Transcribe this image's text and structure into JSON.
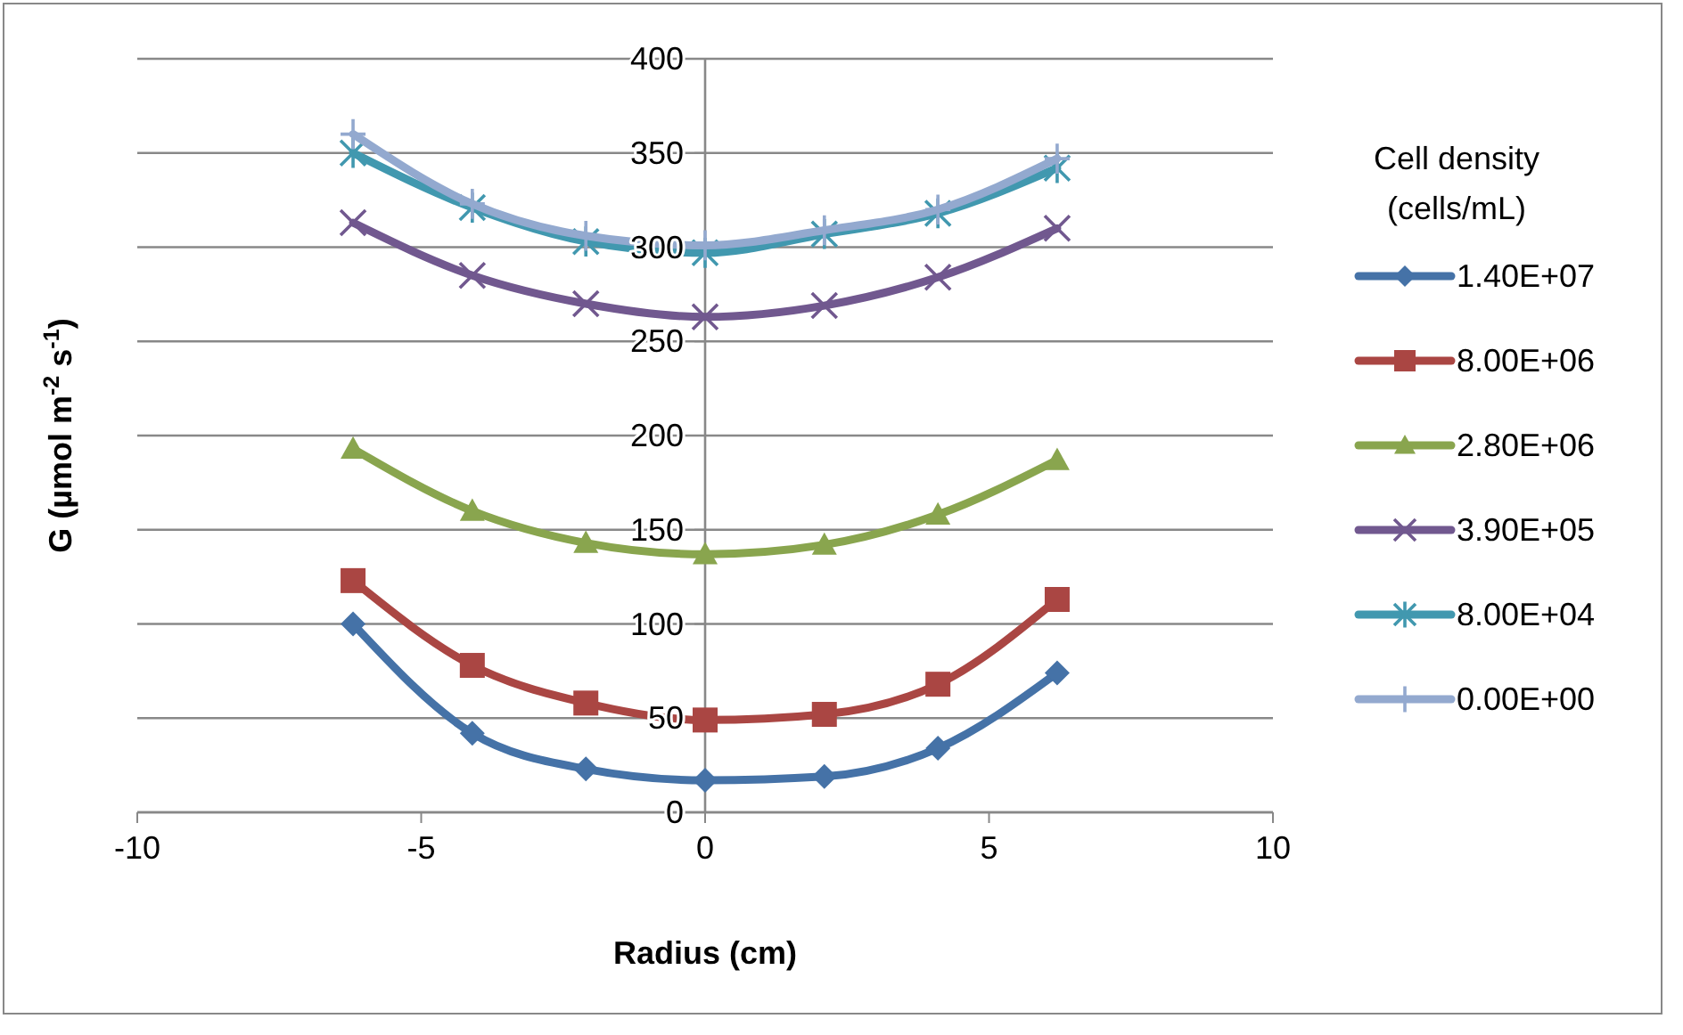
{
  "chart_data": {
    "type": "line",
    "xlabel": "Radius (cm)",
    "ylabel": "G (µmol m$^{-2}$ s$^{-1}$)",
    "legend_title": "Cell density\n(cells/mL)",
    "legend": "right",
    "grid": "y",
    "x": [
      -6.2,
      -4.1,
      -2.1,
      0,
      2.1,
      4.1,
      6.2
    ],
    "xlim": [
      -10,
      10
    ],
    "xticks": [
      -10,
      -5,
      0,
      5,
      10
    ],
    "ylim": [
      0,
      400
    ],
    "yticks": [
      0,
      50,
      100,
      150,
      200,
      250,
      300,
      350,
      400
    ],
    "series": [
      {
        "name": "1.40E+07",
        "color": "#4572a7",
        "marker": "diamond",
        "values": [
          100,
          42,
          23,
          17,
          19,
          34,
          74
        ]
      },
      {
        "name": "8.00E+06",
        "color": "#aa4643",
        "marker": "square",
        "values": [
          123,
          78,
          58,
          49,
          52,
          68,
          113
        ]
      },
      {
        "name": "2.80E+06",
        "color": "#89a54e",
        "marker": "triangle",
        "values": [
          193,
          160,
          143,
          137,
          142,
          158,
          187
        ]
      },
      {
        "name": "3.90E+05",
        "color": "#71588f",
        "marker": "cross",
        "values": [
          313,
          285,
          270,
          263,
          269,
          284,
          310
        ]
      },
      {
        "name": "8.00E+04",
        "color": "#4198af",
        "marker": "cross",
        "values": [
          350,
          321,
          303,
          297,
          307,
          318,
          342
        ]
      },
      {
        "name": "0.00E+00",
        "color": "#93a9cf",
        "marker": "cross",
        "values": [
          360,
          323,
          306,
          301,
          309,
          320,
          347
        ]
      }
    ]
  }
}
